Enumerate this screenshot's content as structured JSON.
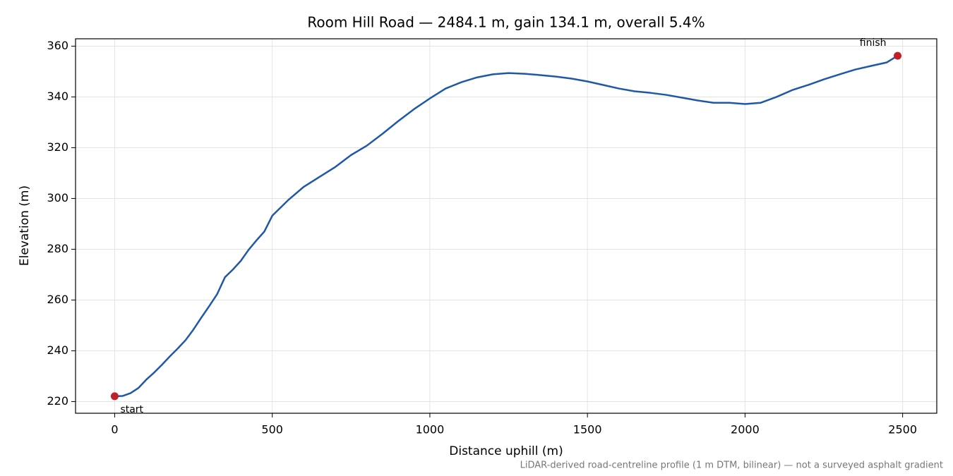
{
  "chart_data": {
    "type": "line",
    "title": "Room Hill Road — 2484.1 m, gain 134.1 m, overall 5.4%",
    "xlabel": "Distance uphill (m)",
    "ylabel": "Elevation (m)",
    "footnote": "LiDAR-derived road-centreline profile (1 m DTM, bilinear) — not a surveyed asphalt gradient",
    "x": [
      0,
      25,
      50,
      75,
      100,
      125,
      150,
      175,
      200,
      225,
      250,
      275,
      300,
      325,
      350,
      375,
      400,
      425,
      450,
      475,
      500,
      550,
      600,
      650,
      700,
      750,
      800,
      850,
      900,
      950,
      1000,
      1050,
      1100,
      1150,
      1200,
      1250,
      1300,
      1350,
      1400,
      1450,
      1500,
      1550,
      1600,
      1650,
      1700,
      1750,
      1800,
      1850,
      1900,
      1950,
      2000,
      2050,
      2100,
      2150,
      2200,
      2250,
      2300,
      2350,
      2400,
      2450,
      2484.1
    ],
    "series": [
      {
        "name": "Elevation",
        "color": "#2058a8",
        "values": [
          222.1,
          222.2,
          223.3,
          225.3,
          228.6,
          231.4,
          234.5,
          237.8,
          240.9,
          244.2,
          248.4,
          253.1,
          257.6,
          262.3,
          269,
          272,
          275.4,
          279.8,
          283.5,
          287,
          293.2,
          299.3,
          304.6,
          308.5,
          312.4,
          317.1,
          320.8,
          325.5,
          330.5,
          335.2,
          339.4,
          343.3,
          345.8,
          347.7,
          348.9,
          349.4,
          349.1,
          348.6,
          348,
          347.2,
          346.1,
          344.7,
          343.3,
          342.2,
          341.6,
          340.8,
          339.7,
          338.6,
          337.7,
          337.7,
          337.2,
          337.7,
          340,
          342.7,
          344.7,
          346.9,
          348.9,
          350.8,
          352.2,
          353.6,
          356.2
        ]
      }
    ],
    "points": [
      {
        "label": "start",
        "x": 0,
        "y": 222.1
      },
      {
        "label": "finish",
        "x": 2484.1,
        "y": 356.2
      }
    ],
    "marker_color": "#c0202a",
    "xlim": [
      -124.2,
      2608.3
    ],
    "xticks": [
      0,
      500,
      1000,
      1500,
      2000,
      2500
    ],
    "ylim": [
      215.4,
      362.9
    ],
    "yticks": [
      220,
      240,
      260,
      280,
      300,
      320,
      340,
      360
    ],
    "grid": true
  }
}
